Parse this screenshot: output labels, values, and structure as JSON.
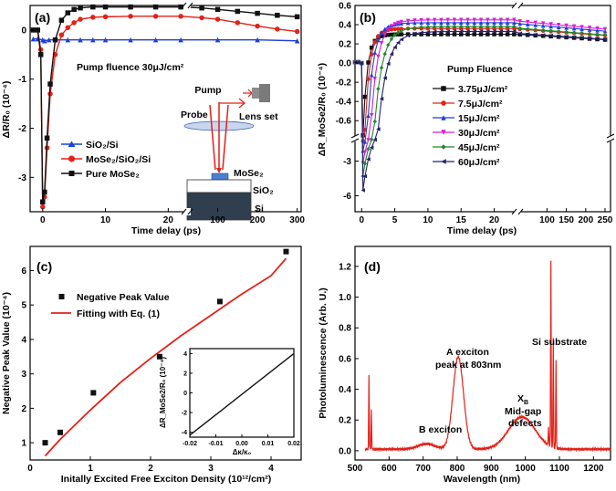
{
  "chart_data": [
    {
      "panel": "a",
      "type": "line",
      "panel_label": "(a)",
      "xlabel": "Time delay (ps)",
      "ylabel": "ΔR/R₀ (10⁻⁴)",
      "x_ticks_left": [
        "0",
        "10",
        "20"
      ],
      "x_ticks_right": [
        "100",
        "200",
        "300"
      ],
      "y_ticks": [
        "-3",
        "-2",
        "-1",
        "0"
      ],
      "ylim": [
        -3.7,
        0.5
      ],
      "annotation": "Pump fluence 30μJ/cm²",
      "legend": [
        "SiO₂/Si",
        "MoSe₂/SiO₂/Si",
        "Pure MoSe₂"
      ],
      "series": [
        {
          "name": "SiO₂/Si",
          "color": "#1f3fd6",
          "marker": "triangle",
          "x": [
            -1.5,
            -0.8,
            0,
            0.3,
            1,
            2,
            4,
            6,
            8,
            10,
            14,
            18,
            22,
            100,
            200,
            300
          ],
          "y": [
            -0.18,
            -0.18,
            -0.2,
            -0.22,
            -0.2,
            -0.2,
            -0.2,
            -0.2,
            -0.2,
            -0.2,
            -0.2,
            -0.2,
            -0.2,
            -0.2,
            -0.2,
            -0.22
          ]
        },
        {
          "name": "MoSe₂/SiO₂/Si",
          "color": "#e32118",
          "marker": "circle",
          "x": [
            -1.5,
            -0.8,
            -0.3,
            0,
            0.3,
            0.7,
            1.2,
            2,
            3,
            4,
            5,
            6,
            8,
            10,
            14,
            18,
            22,
            60,
            100,
            150,
            200,
            250,
            300
          ],
          "y": [
            0,
            0,
            -0.4,
            -3.6,
            -3.4,
            -2.4,
            -1.3,
            -0.5,
            -0.1,
            0.05,
            0.15,
            0.22,
            0.26,
            0.27,
            0.28,
            0.28,
            0.28,
            0.25,
            0.22,
            0.15,
            0.08,
            0.02,
            -0.03
          ]
        },
        {
          "name": "Pure MoSe₂",
          "color": "#111111",
          "marker": "square",
          "x": [
            -1.5,
            -0.8,
            -0.3,
            0,
            0.3,
            0.7,
            1.2,
            2,
            3,
            4,
            5,
            6,
            8,
            10,
            14,
            18,
            22,
            60,
            100,
            150,
            200,
            250,
            300
          ],
          "y": [
            0,
            0,
            -0.5,
            -3.5,
            -3.3,
            -2.2,
            -1.1,
            -0.2,
            0.2,
            0.35,
            0.42,
            0.45,
            0.47,
            0.47,
            0.47,
            0.47,
            0.47,
            0.45,
            0.42,
            0.38,
            0.34,
            0.3,
            0.27
          ]
        }
      ],
      "inset": {
        "labels": {
          "pump": "Pump",
          "probe": "Probe",
          "lens": "Lens set",
          "mose2": "MoSe₂",
          "sio2": "SiO₂",
          "si": "Si"
        }
      }
    },
    {
      "panel": "b",
      "type": "line",
      "panel_label": "(b)",
      "xlabel": "Time delay (ps)",
      "ylabel": "ΔR_MoSe2/R₀ (10⁻⁴)",
      "x_ticks_left": [
        "0",
        "5",
        "10",
        "15",
        "20"
      ],
      "x_ticks_right": [
        "100",
        "150",
        "200",
        "250"
      ],
      "y_ticks_top": [
        "0.6",
        "0.4",
        "0.2",
        "0.0",
        "-0.2",
        "-0.4",
        "-0.6"
      ],
      "y_ticks_bottom": [
        "-3",
        "-6"
      ],
      "legend_title": "Pump Fluence",
      "legend": [
        "3.75μJ/cm²",
        "7.5μJ/cm²",
        "15μJ/cm²",
        "30μJ/cm²",
        "45μJ/cm²",
        "60μJ/cm²"
      ],
      "series": [
        {
          "name": "3.75μJ/cm²",
          "color": "#111111",
          "marker": "square",
          "peak": -1.2,
          "plateau": 0.3,
          "rise": 1.6
        },
        {
          "name": "7.5μJ/cm²",
          "color": "#e32118",
          "marker": "circle",
          "peak": -1.8,
          "plateau": 0.36,
          "rise": 1.9
        },
        {
          "name": "15μJ/cm²",
          "color": "#1f3fd6",
          "marker": "triangle",
          "peak": -2.8,
          "plateau": 0.42,
          "rise": 2.3
        },
        {
          "name": "30μJ/cm²",
          "color": "#d61fd6",
          "marker": "triangle-down",
          "peak": -4.0,
          "plateau": 0.45,
          "rise": 2.8
        },
        {
          "name": "45μJ/cm²",
          "color": "#1d8a2a",
          "marker": "diamond",
          "peak": -5.2,
          "plateau": 0.38,
          "rise": 3.3
        },
        {
          "name": "60μJ/cm²",
          "color": "#22226e",
          "marker": "triangle-left",
          "peak": -6.5,
          "plateau": 0.33,
          "rise": 3.8
        }
      ]
    },
    {
      "panel": "c",
      "type": "scatter",
      "panel_label": "(c)",
      "xlabel": "Initally Excited Free Exciton Density (10¹²/cm²)",
      "ylabel": "Negative Peak Value (10⁻⁴)",
      "x_ticks": [
        "0",
        "1",
        "2",
        "3",
        "4"
      ],
      "y_ticks": [
        "1",
        "2",
        "3",
        "4",
        "5",
        "6"
      ],
      "xlim": [
        0,
        4.5
      ],
      "ylim": [
        0.5,
        6.7
      ],
      "legend": [
        "Negative Peak Value",
        "Fitting with Eq. (1)"
      ],
      "points": {
        "x": [
          0.25,
          0.5,
          1.05,
          2.15,
          3.15,
          4.25
        ],
        "y": [
          1.0,
          1.3,
          2.45,
          3.5,
          5.1,
          6.55
        ]
      },
      "fit": {
        "x": [
          0.25,
          0.5,
          1.0,
          1.5,
          2.0,
          2.5,
          3.0,
          3.5,
          4.0,
          4.25
        ],
        "y": [
          0.62,
          1.1,
          1.95,
          2.75,
          3.45,
          4.1,
          4.7,
          5.3,
          5.85,
          6.35
        ]
      },
      "inset": {
        "xlabel": "Δκ/κ₀",
        "ylabel": "ΔR_MoSe2/R₀ (10⁻⁴)",
        "x_ticks": [
          "-0.02",
          "-0.01",
          "0.00",
          "0.01",
          "0.02"
        ],
        "y_ticks": [
          "4",
          "2",
          "0",
          "-2",
          "-4"
        ],
        "xlim": [
          -0.02,
          0.02
        ],
        "ylim": [
          -4.5,
          4.5
        ],
        "line": {
          "x": [
            -0.02,
            0.02
          ],
          "y": [
            -4.3,
            4.0
          ]
        }
      }
    },
    {
      "panel": "d",
      "type": "line",
      "panel_label": "(d)",
      "xlabel": "Wavelength (nm)",
      "ylabel": "Photoluminescence (Arb. U.)",
      "x_ticks": [
        "500",
        "600",
        "700",
        "800",
        "900",
        "1000",
        "1100",
        "1200"
      ],
      "y_ticks": [
        "0.0",
        "0.2",
        "0.4",
        "0.6",
        "0.8",
        "1.0",
        "1.2"
      ],
      "xlim": [
        500,
        1250
      ],
      "ylim": [
        -0.06,
        1.33
      ],
      "annotations": {
        "a_exciton_1": "A exciton",
        "a_exciton_2": "peak at 803nm",
        "si_substrate": "Si substrate",
        "xb": "X",
        "xb_sub": "B",
        "midgap_1": "Mid-gap",
        "midgap_2": "defects",
        "b_exciton": "B exciton"
      },
      "spectrum": {
        "baseline": 0.01,
        "a_peak": {
          "center": 803,
          "height": 0.6,
          "width": 22
        },
        "b_bump": {
          "center": 710,
          "height": 0.035,
          "width": 35
        },
        "defect_bump": {
          "center": 990,
          "height": 0.21,
          "width": 55
        },
        "spikes": [
          {
            "center": 541,
            "height": 0.48
          },
          {
            "center": 548,
            "height": 0.25
          },
          {
            "center": 1075,
            "height": 1.21
          },
          {
            "center": 1082,
            "height": 0.72
          },
          {
            "center": 1090,
            "height": 0.58
          },
          {
            "center": 1068,
            "height": 0.12
          }
        ]
      }
    }
  ]
}
